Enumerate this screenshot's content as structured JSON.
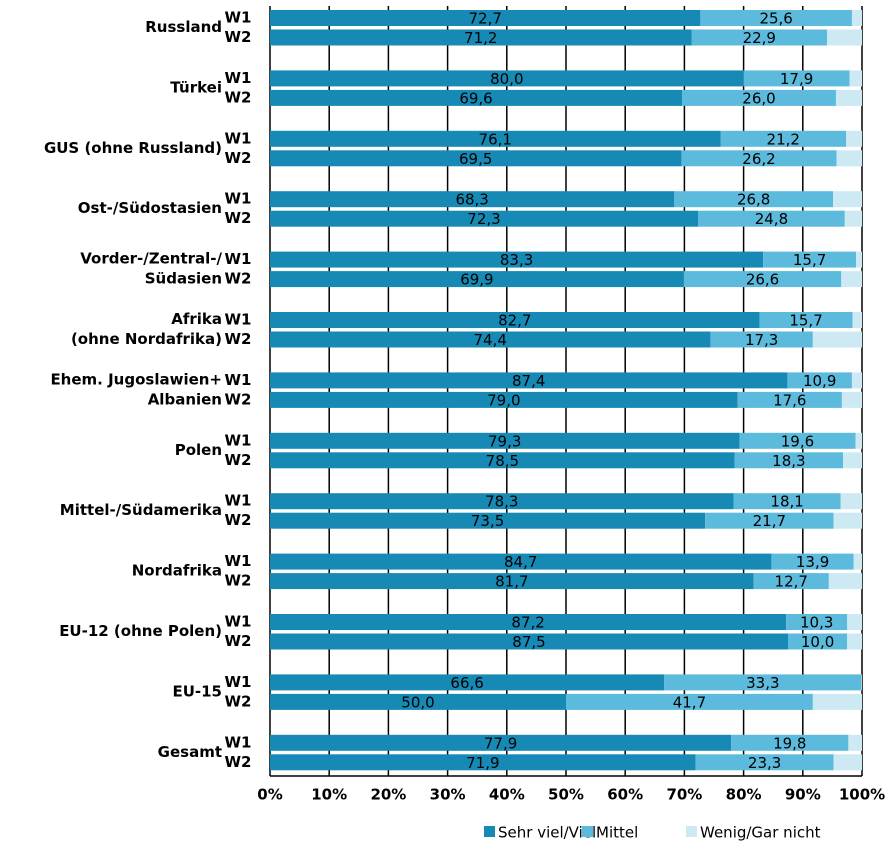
{
  "chart_data": {
    "type": "stacked-barh",
    "groups": [
      [
        "Russland"
      ],
      [
        "Türkei"
      ],
      [
        "GUS (ohne Russland)"
      ],
      [
        "Ost-/Südostasien"
      ],
      [
        "Vorder-/Zentral-/",
        "Südasien"
      ],
      [
        "Afrika",
        "(ohne Nordafrika)"
      ],
      [
        "Ehem. Jugoslawien+",
        "Albanien"
      ],
      [
        "Polen"
      ],
      [
        "Mittel-/Südamerika"
      ],
      [
        "Nordafrika"
      ],
      [
        "EU-12 (ohne Polen)"
      ],
      [
        "EU-15"
      ],
      [
        "Gesamt"
      ]
    ],
    "waves": [
      "W1",
      "W2"
    ],
    "series": [
      {
        "name": "Sehr viel/Viel",
        "color": "#168ab5",
        "values": [
          72.7,
          71.2,
          80.0,
          69.6,
          76.1,
          69.5,
          68.3,
          72.3,
          83.3,
          69.9,
          82.7,
          74.4,
          87.4,
          79.0,
          79.3,
          78.5,
          78.3,
          73.5,
          84.7,
          81.7,
          87.2,
          87.5,
          66.6,
          50.0,
          77.9,
          71.9
        ],
        "value_labels": [
          "72,7",
          "71,2",
          "80,0",
          "69,6",
          "76,1",
          "69,5",
          "68,3",
          "72,3",
          "83,3",
          "69,9",
          "82,7",
          "74,4",
          "87,4",
          "79,0",
          "79,3",
          "78,5",
          "78,3",
          "73,5",
          "84,7",
          "81,7",
          "87,2",
          "87,5",
          "66,6",
          "50,0",
          "77,9",
          "71,9"
        ]
      },
      {
        "name": "Mittel",
        "color": "#5cbadd",
        "values": [
          25.6,
          22.9,
          17.9,
          26.0,
          21.2,
          26.2,
          26.8,
          24.8,
          15.7,
          26.6,
          15.7,
          17.3,
          10.9,
          17.6,
          19.6,
          18.3,
          18.1,
          21.7,
          13.9,
          12.7,
          10.3,
          10.0,
          33.3,
          41.7,
          19.8,
          23.3
        ],
        "value_labels": [
          "25,6",
          "22,9",
          "17,9",
          "26,0",
          "21,2",
          "26,2",
          "26,8",
          "24,8",
          "15,7",
          "26,6",
          "15,7",
          "17,3",
          "10,9",
          "17,6",
          "19,6",
          "18,3",
          "18,1",
          "21,7",
          "13,9",
          "12,7",
          "10,3",
          "10,0",
          "33,3",
          "41,7",
          "19,8",
          "23,3"
        ]
      },
      {
        "name": "Wenig/Gar nicht",
        "color": "#cde9f4",
        "values": [
          1.7,
          5.9,
          2.1,
          4.4,
          2.7,
          4.3,
          4.9,
          2.9,
          1.0,
          3.5,
          1.6,
          8.3,
          1.7,
          3.4,
          1.1,
          3.2,
          3.6,
          4.8,
          1.4,
          5.6,
          2.5,
          2.5,
          0.1,
          8.3,
          2.3,
          4.8
        ]
      }
    ],
    "xlim": [
      0,
      100
    ],
    "xticks": [
      {
        "value": 0,
        "label": "0%"
      },
      {
        "value": 10,
        "label": "10%"
      },
      {
        "value": 20,
        "label": "20%"
      },
      {
        "value": 30,
        "label": "30%"
      },
      {
        "value": 40,
        "label": "40%"
      },
      {
        "value": 50,
        "label": "50%"
      },
      {
        "value": 60,
        "label": "60%"
      },
      {
        "value": 70,
        "label": "70%"
      },
      {
        "value": 80,
        "label": "80%"
      },
      {
        "value": 90,
        "label": "90%"
      },
      {
        "value": 100,
        "label": "100%"
      }
    ],
    "grid": true,
    "legend": "bottom-right"
  }
}
